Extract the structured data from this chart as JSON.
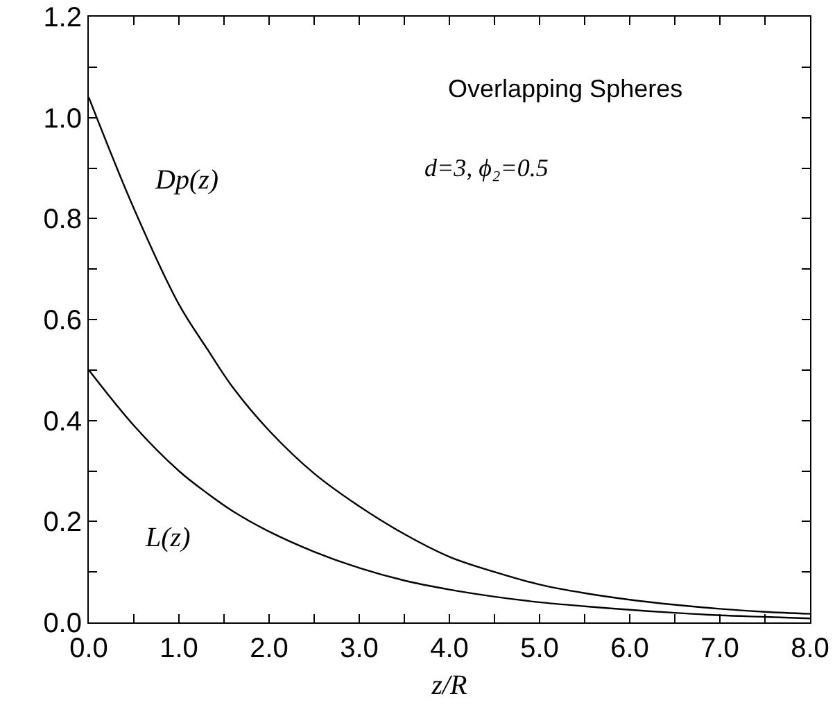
{
  "chart_data": {
    "type": "line",
    "xlabel": "z/R",
    "x": [
      0,
      0.5,
      1.0,
      1.32,
      1.6,
      2.0,
      2.5,
      3.0,
      3.5,
      4.0,
      4.5,
      5.0,
      5.5,
      6.0,
      6.5,
      7.0,
      7.5,
      8.0
    ],
    "series": [
      {
        "name": "Dp(z)",
        "color": "#000000",
        "values": [
          1.04,
          0.82,
          0.63,
          0.54,
          0.465,
          0.38,
          0.295,
          0.23,
          0.175,
          0.13,
          0.1,
          0.075,
          0.058,
          0.045,
          0.035,
          0.027,
          0.021,
          0.017
        ]
      },
      {
        "name": "L(z)",
        "color": "#000000",
        "values": [
          0.5,
          0.39,
          0.3,
          0.255,
          0.22,
          0.18,
          0.14,
          0.108,
          0.083,
          0.065,
          0.051,
          0.04,
          0.032,
          0.025,
          0.019,
          0.014,
          0.011,
          0.008
        ]
      }
    ],
    "annotations": [
      "Overlapping Spheres",
      "d=3, ϕ₂=0.5"
    ],
    "xlim": [
      0,
      8
    ],
    "xticks": [
      {
        "value": 0,
        "label": "0.0"
      },
      {
        "value": 0.5,
        "label": null
      },
      {
        "value": 1,
        "label": "1.0"
      },
      {
        "value": 1.5,
        "label": null
      },
      {
        "value": 2,
        "label": "2.0"
      },
      {
        "value": 2.5,
        "label": null
      },
      {
        "value": 3,
        "label": "3.0"
      },
      {
        "value": 3.5,
        "label": null
      },
      {
        "value": 4,
        "label": "4.0"
      },
      {
        "value": 4.5,
        "label": null
      },
      {
        "value": 5,
        "label": "5.0"
      },
      {
        "value": 5.5,
        "label": null
      },
      {
        "value": 6,
        "label": "6.0"
      },
      {
        "value": 6.5,
        "label": null
      },
      {
        "value": 7,
        "label": "7.0"
      },
      {
        "value": 7.5,
        "label": null
      },
      {
        "value": 8,
        "label": "8.0"
      }
    ],
    "ylim": [
      0,
      1.2
    ],
    "yticks": [
      {
        "value": 0,
        "label": "0.0"
      },
      {
        "value": 0.1,
        "label": null
      },
      {
        "value": 0.2,
        "label": "0.2"
      },
      {
        "value": 0.3,
        "label": null
      },
      {
        "value": 0.4,
        "label": "0.4"
      },
      {
        "value": 0.5,
        "label": null
      },
      {
        "value": 0.6,
        "label": "0.6"
      },
      {
        "value": 0.7,
        "label": null
      },
      {
        "value": 0.8,
        "label": "0.8"
      },
      {
        "value": 0.9,
        "label": null
      },
      {
        "value": 1.0,
        "label": "1.0"
      },
      {
        "value": 1.1,
        "label": null
      },
      {
        "value": 1.2,
        "label": "1.2"
      }
    ],
    "legend": false,
    "marker": "none",
    "line_style": "solid"
  }
}
